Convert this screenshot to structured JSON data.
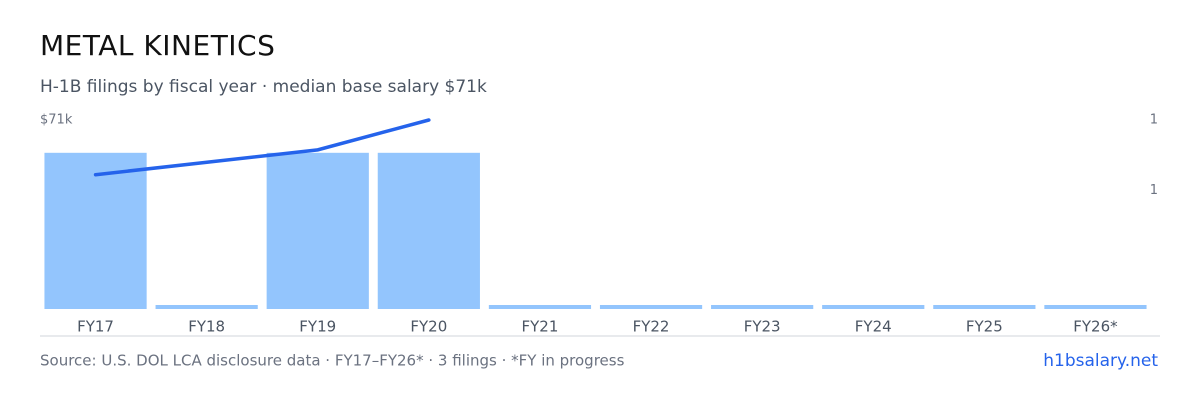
{
  "chart_data": {
    "type": "bar-line",
    "title": "METAL KINETICS",
    "subtitle": "H-1B filings by fiscal year · median base salary $71k",
    "categories": [
      "FY17",
      "FY18",
      "FY19",
      "FY20",
      "FY21",
      "FY22",
      "FY23",
      "FY24",
      "FY25",
      "FY26*"
    ],
    "series": [
      {
        "name": "filings",
        "type": "bar",
        "axis": "y2",
        "color": "#93c5fd",
        "values": [
          1,
          0,
          1,
          1,
          0,
          0,
          0,
          0,
          0,
          0
        ]
      },
      {
        "name": "median base salary",
        "type": "line",
        "axis": "y",
        "color": "#2563eb",
        "x": [
          "FY17",
          "FY19",
          "FY20"
        ],
        "values": [
          60000,
          65000,
          71000
        ]
      }
    ],
    "ylim": [
      33000,
      71000
    ],
    "yticks": [
      {
        "value": 71000,
        "label": "$71k"
      }
    ],
    "y2lim": [
      0,
      1.21
    ],
    "y2ticks": [
      {
        "value": 1.21,
        "label": "1"
      },
      {
        "value": 0.76,
        "label": "1"
      }
    ],
    "source": "Source: U.S. DOL LCA disclosure data · FY17–FY26* · 3 filings · *FY in progress",
    "link": "h1bsalary.net"
  }
}
